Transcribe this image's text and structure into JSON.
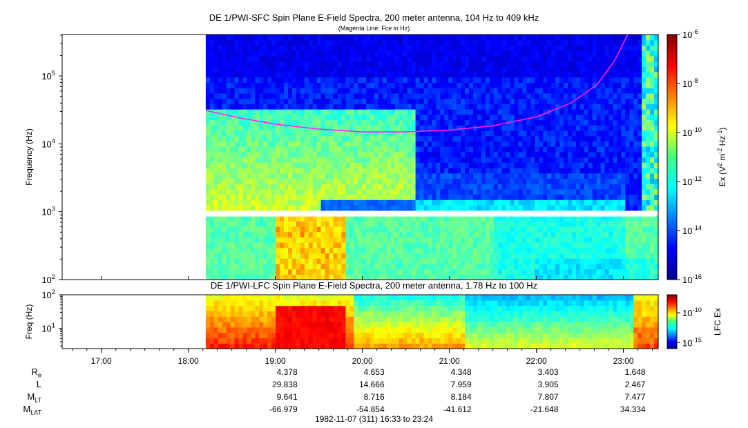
{
  "titles": {
    "top": "DE 1/PWI-SFC  Spin Plane E-Field Spectra, 200 meter antenna, 104 Hz to 409 kHz",
    "top_note": "(Magenta Line: Fce in Hz)",
    "bottom": "DE 1/PWI-LFC  Spin Plane E-Field Spectra, 200 meter antenna, 1.78 Hz to 100 Hz",
    "footer": "1982-11-07 (311) 16:33 to 23:24"
  },
  "chart_data": [
    {
      "type": "heatmap",
      "name": "SFC spectrogram",
      "ylabel": "Frequency (Hz)",
      "yscale": "log",
      "ylim": [
        100,
        409000
      ],
      "yticks": [
        {
          "v": 100,
          "base": "10",
          "exp": "2"
        },
        {
          "v": 1000,
          "base": "10",
          "exp": "3"
        },
        {
          "v": 10000,
          "base": "10",
          "exp": "4"
        },
        {
          "v": 100000,
          "base": "10",
          "exp": "5"
        }
      ],
      "xlim_hours": [
        16.55,
        23.4
      ],
      "data_start_hour": 18.2,
      "colorbar": {
        "label_parts": [
          "Ex (V",
          "2",
          " m",
          "-2",
          " Hz",
          "-1",
          ")"
        ],
        "scale": "log",
        "range": [
          1e-16,
          1e-06
        ],
        "ticks": [
          {
            "v": -6,
            "base": "10",
            "exp": "-6"
          },
          {
            "v": -8,
            "base": "10",
            "exp": "-8"
          },
          {
            "v": -10,
            "base": "10",
            "exp": "-10"
          },
          {
            "v": -12,
            "base": "10",
            "exp": "-12"
          },
          {
            "v": -14,
            "base": "10",
            "exp": "-14"
          },
          {
            "v": -16,
            "base": "10",
            "exp": "-16"
          }
        ]
      },
      "fce_line": {
        "color": "#ff22ff",
        "hours": [
          18.2,
          18.6,
          19.0,
          19.5,
          20.0,
          20.5,
          21.0,
          21.5,
          22.0,
          22.4,
          22.7,
          22.9,
          23.05
        ],
        "fce_hz": [
          31000,
          24000,
          19500,
          16500,
          15000,
          15000,
          16000,
          18500,
          25000,
          40000,
          75000,
          170000,
          409000
        ]
      }
    },
    {
      "type": "heatmap",
      "name": "LFC spectrogram",
      "ylabel": "Freq (Hz)",
      "yscale": "log",
      "ylim": [
        2.5,
        100
      ],
      "yticks": [
        {
          "v": 10,
          "base": "10",
          "exp": "1"
        },
        {
          "v": 100,
          "base": "10",
          "exp": "2"
        }
      ],
      "colorbar": {
        "label": "LFC Ex",
        "scale": "log",
        "range": [
          1e-16,
          1e-07
        ],
        "ticks": [
          {
            "v": -10,
            "base": "10",
            "exp": "-10"
          },
          {
            "v": -15,
            "base": "10",
            "exp": "-15"
          }
        ]
      }
    }
  ],
  "time_axis": {
    "ticks": [
      {
        "h": 17,
        "label": "17:00"
      },
      {
        "h": 18,
        "label": "18:00"
      },
      {
        "h": 19,
        "label": "19:00"
      },
      {
        "h": 20,
        "label": "20:00"
      },
      {
        "h": 21,
        "label": "21:00"
      },
      {
        "h": 22,
        "label": "22:00"
      },
      {
        "h": 23,
        "label": "23:00"
      }
    ]
  },
  "ephemeris": {
    "rows": [
      {
        "label": "R",
        "sub": "e",
        "values": [
          "4.378",
          "4.653",
          "4.348",
          "3.403",
          "1.648"
        ]
      },
      {
        "label": "L",
        "sub": "",
        "values": [
          "29.838",
          "14.666",
          "7.959",
          "3.905",
          "2.467"
        ]
      },
      {
        "label": "M",
        "sub": "LT",
        "values": [
          "9.641",
          "8.716",
          "8.184",
          "7.807",
          "7.477"
        ]
      },
      {
        "label": "M",
        "sub": "LAT",
        "values": [
          "-66.979",
          "-54.854",
          "-41.612",
          "-21.648",
          "34.334"
        ]
      }
    ],
    "hours": [
      19,
      20,
      21,
      22,
      23
    ]
  }
}
